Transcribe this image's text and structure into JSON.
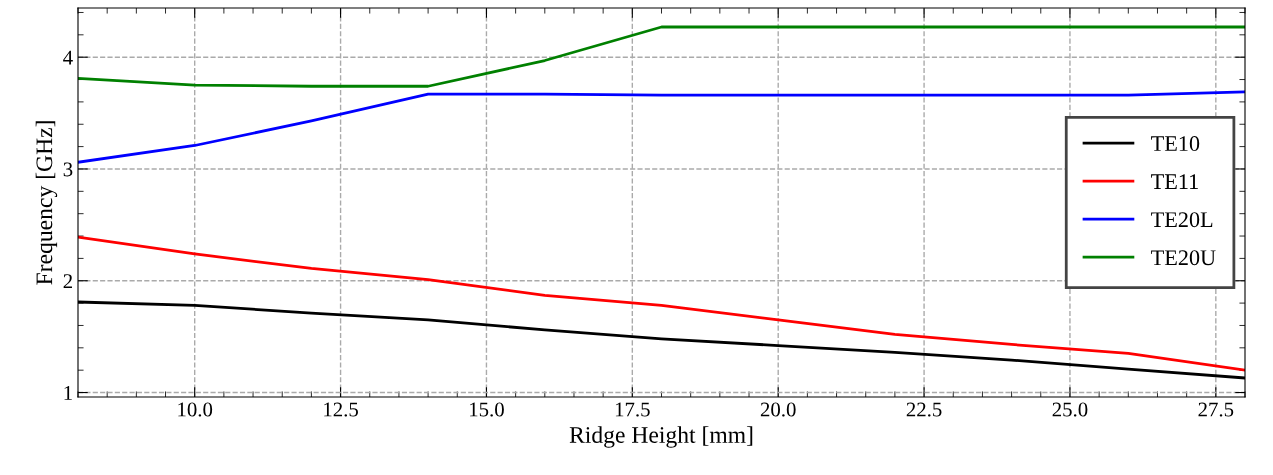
{
  "chart_data": {
    "type": "line",
    "xlabel": "Ridge Height [mm]",
    "ylabel": "Frequency [GHz]",
    "x": [
      8,
      10,
      12,
      14,
      16,
      18,
      20,
      22,
      24,
      26,
      28
    ],
    "series": [
      {
        "name": "TE10",
        "color": "#000000",
        "values": [
          1.81,
          1.78,
          1.71,
          1.65,
          1.56,
          1.48,
          1.42,
          1.36,
          1.29,
          1.21,
          1.13
        ]
      },
      {
        "name": "TE11",
        "color": "#ff0000",
        "values": [
          2.39,
          2.24,
          2.11,
          2.01,
          1.87,
          1.78,
          1.65,
          1.52,
          1.43,
          1.35,
          1.2
        ]
      },
      {
        "name": "TE20L",
        "color": "#0000ff",
        "values": [
          3.06,
          3.21,
          3.43,
          3.67,
          3.67,
          3.66,
          3.66,
          3.66,
          3.66,
          3.66,
          3.69
        ]
      },
      {
        "name": "TE20U",
        "color": "#008000",
        "values": [
          3.81,
          3.75,
          3.74,
          3.74,
          3.97,
          4.27,
          4.27,
          4.27,
          4.27,
          4.27,
          4.27
        ]
      }
    ],
    "xlim": [
      8,
      28
    ],
    "xticks": [
      {
        "value": 10,
        "label": "10.0"
      },
      {
        "value": 12.5,
        "label": "12.5"
      },
      {
        "value": 15,
        "label": "15.0"
      },
      {
        "value": 17.5,
        "label": "17.5"
      },
      {
        "value": 20,
        "label": "20.0"
      },
      {
        "value": 22.5,
        "label": "22.5"
      },
      {
        "value": 25,
        "label": "25.0"
      },
      {
        "value": 27.5,
        "label": "27.5"
      }
    ],
    "ylim": [
      0.96,
      4.44
    ],
    "yticks": [
      1,
      2,
      3,
      4
    ],
    "grid": true,
    "legend": "right",
    "marker": "none",
    "line_style": "solid"
  }
}
